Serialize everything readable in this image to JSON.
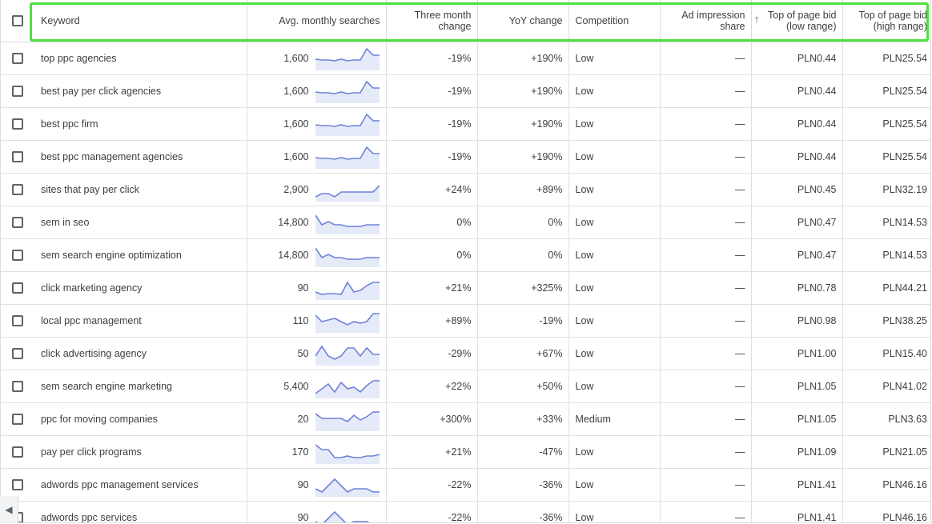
{
  "header": {
    "keyword": "Keyword",
    "avg_monthly": "Avg. monthly searches",
    "three_month": "Three month change",
    "yoy": "YoY change",
    "competition": "Competition",
    "ad_impression": "Ad impression share",
    "top_low": "Top of page bid (low range)",
    "top_high": "Top of page bid (high range)",
    "sort_icon": "arrow-up-icon"
  },
  "rows": [
    {
      "keyword": "top ppc agencies",
      "avg": "1,600",
      "three": "-19%",
      "yoy": "+190%",
      "comp": "Low",
      "imp": "—",
      "low": "PLN0.44",
      "high": "PLN25.54",
      "trend": [
        12,
        11,
        11,
        10,
        12,
        10,
        11,
        11,
        25,
        17,
        17
      ]
    },
    {
      "keyword": "best pay per click agencies",
      "avg": "1,600",
      "three": "-19%",
      "yoy": "+190%",
      "comp": "Low",
      "imp": "—",
      "low": "PLN0.44",
      "high": "PLN25.54",
      "trend": [
        12,
        11,
        11,
        10,
        12,
        10,
        11,
        11,
        25,
        17,
        17
      ]
    },
    {
      "keyword": "best ppc firm",
      "avg": "1,600",
      "three": "-19%",
      "yoy": "+190%",
      "comp": "Low",
      "imp": "—",
      "low": "PLN0.44",
      "high": "PLN25.54",
      "trend": [
        12,
        11,
        11,
        10,
        12,
        10,
        11,
        11,
        25,
        17,
        17
      ]
    },
    {
      "keyword": "best ppc management agencies",
      "avg": "1,600",
      "three": "-19%",
      "yoy": "+190%",
      "comp": "Low",
      "imp": "—",
      "low": "PLN0.44",
      "high": "PLN25.54",
      "trend": [
        12,
        11,
        11,
        10,
        12,
        10,
        11,
        11,
        25,
        17,
        17
      ]
    },
    {
      "keyword": "sites that pay per click",
      "avg": "2,900",
      "three": "+24%",
      "yoy": "+89%",
      "comp": "Low",
      "imp": "—",
      "low": "PLN0.45",
      "high": "PLN32.19",
      "trend": [
        4,
        8,
        8,
        4,
        10,
        10,
        10,
        10,
        10,
        10,
        18
      ]
    },
    {
      "keyword": "sem in seo",
      "avg": "14,800",
      "three": "0%",
      "yoy": "0%",
      "comp": "Low",
      "imp": "—",
      "low": "PLN0.47",
      "high": "PLN14.53",
      "trend": [
        22,
        10,
        14,
        10,
        10,
        8,
        8,
        8,
        10,
        10,
        10
      ]
    },
    {
      "keyword": "sem search engine optimization",
      "avg": "14,800",
      "three": "0%",
      "yoy": "0%",
      "comp": "Low",
      "imp": "—",
      "low": "PLN0.47",
      "high": "PLN14.53",
      "trend": [
        22,
        10,
        14,
        10,
        10,
        8,
        8,
        8,
        10,
        10,
        10
      ]
    },
    {
      "keyword": "click marketing agency",
      "avg": "90",
      "three": "+21%",
      "yoy": "+325%",
      "comp": "Low",
      "imp": "—",
      "low": "PLN0.78",
      "high": "PLN44.21",
      "trend": [
        8,
        5,
        6,
        6,
        5,
        20,
        8,
        10,
        16,
        20,
        20
      ]
    },
    {
      "keyword": "local ppc management",
      "avg": "110",
      "three": "+89%",
      "yoy": "-19%",
      "comp": "Low",
      "imp": "—",
      "low": "PLN0.98",
      "high": "PLN38.25",
      "trend": [
        20,
        12,
        14,
        16,
        12,
        8,
        12,
        10,
        12,
        22,
        22
      ]
    },
    {
      "keyword": "click advertising agency",
      "avg": "50",
      "three": "-29%",
      "yoy": "+67%",
      "comp": "Low",
      "imp": "—",
      "low": "PLN1.00",
      "high": "PLN15.40",
      "trend": [
        10,
        22,
        10,
        6,
        10,
        20,
        20,
        10,
        20,
        12,
        12
      ]
    },
    {
      "keyword": "sem search engine marketing",
      "avg": "5,400",
      "three": "+22%",
      "yoy": "+50%",
      "comp": "Low",
      "imp": "—",
      "low": "PLN1.05",
      "high": "PLN41.02",
      "trend": [
        4,
        10,
        16,
        6,
        18,
        10,
        12,
        6,
        14,
        20,
        20
      ]
    },
    {
      "keyword": "ppc for moving companies",
      "avg": "20",
      "three": "+300%",
      "yoy": "+33%",
      "comp": "Medium",
      "imp": "—",
      "low": "PLN1.05",
      "high": "PLN3.63",
      "trend": [
        20,
        14,
        14,
        14,
        14,
        10,
        18,
        12,
        16,
        22,
        22
      ]
    },
    {
      "keyword": "pay per click programs",
      "avg": "170",
      "three": "+21%",
      "yoy": "-47%",
      "comp": "Low",
      "imp": "—",
      "low": "PLN1.09",
      "high": "PLN21.05",
      "trend": [
        22,
        16,
        16,
        6,
        6,
        8,
        6,
        6,
        8,
        8,
        10
      ]
    },
    {
      "keyword": "adwords ppc management services",
      "avg": "90",
      "three": "-22%",
      "yoy": "-36%",
      "comp": "Low",
      "imp": "—",
      "low": "PLN1.41",
      "high": "PLN46.16",
      "trend": [
        8,
        4,
        12,
        20,
        12,
        4,
        8,
        8,
        8,
        4,
        4
      ]
    },
    {
      "keyword": "adwords ppc services",
      "avg": "90",
      "three": "-22%",
      "yoy": "-36%",
      "comp": "Low",
      "imp": "—",
      "low": "PLN1.41",
      "high": "PLN46.16",
      "trend": [
        8,
        4,
        12,
        20,
        12,
        4,
        8,
        8,
        8,
        4,
        4
      ]
    }
  ],
  "colors": {
    "highlight": "#4fe03d",
    "sparkline": "#6d82d8",
    "sparkfill": "#e5eaf8"
  },
  "scroll_icon": "chevron-left-icon"
}
